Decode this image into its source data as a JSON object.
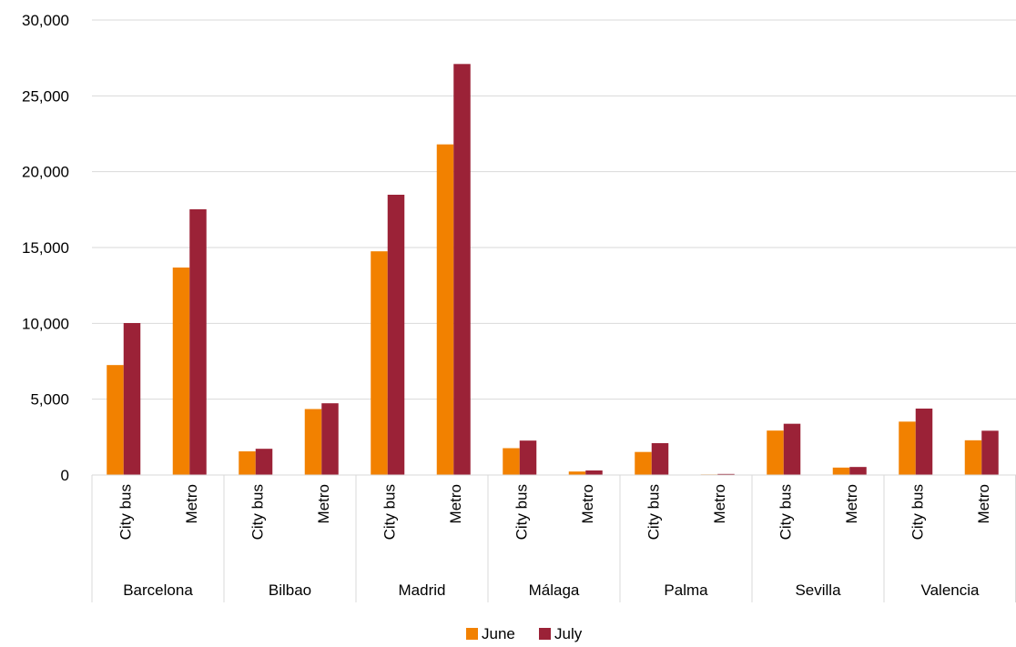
{
  "chart_data": {
    "type": "bar",
    "groups": [
      {
        "name": "Barcelona",
        "categories": [
          "City bus",
          "Metro"
        ]
      },
      {
        "name": "Bilbao",
        "categories": [
          "City bus",
          "Metro"
        ]
      },
      {
        "name": "Madrid",
        "categories": [
          "City bus",
          "Metro"
        ]
      },
      {
        "name": "Málaga",
        "categories": [
          "City bus",
          "Metro"
        ]
      },
      {
        "name": "Palma",
        "categories": [
          "City bus",
          "Metro"
        ]
      },
      {
        "name": "Sevilla",
        "categories": [
          "City bus",
          "Metro"
        ]
      },
      {
        "name": "Valencia",
        "categories": [
          "City bus",
          "Metro"
        ]
      }
    ],
    "series": [
      {
        "name": "June",
        "color": "#F28100",
        "values": [
          7250,
          13680,
          1560,
          4350,
          14750,
          21800,
          1770,
          230,
          1520,
          40,
          2930,
          490,
          3520,
          2290
        ]
      },
      {
        "name": "July",
        "color": "#9B2237",
        "values": [
          10020,
          17520,
          1730,
          4730,
          18480,
          27100,
          2270,
          300,
          2100,
          70,
          3380,
          530,
          4380,
          2920
        ]
      }
    ],
    "ylim": [
      0,
      30000
    ],
    "yticks": [
      "0",
      "5,000",
      "10,000",
      "15,000",
      "20,000",
      "25,000",
      "30,000"
    ],
    "ytick_values": [
      0,
      5000,
      10000,
      15000,
      20000,
      25000,
      30000
    ],
    "grid": true,
    "legend": "bottom",
    "title": "",
    "xlabel": "",
    "ylabel": ""
  }
}
